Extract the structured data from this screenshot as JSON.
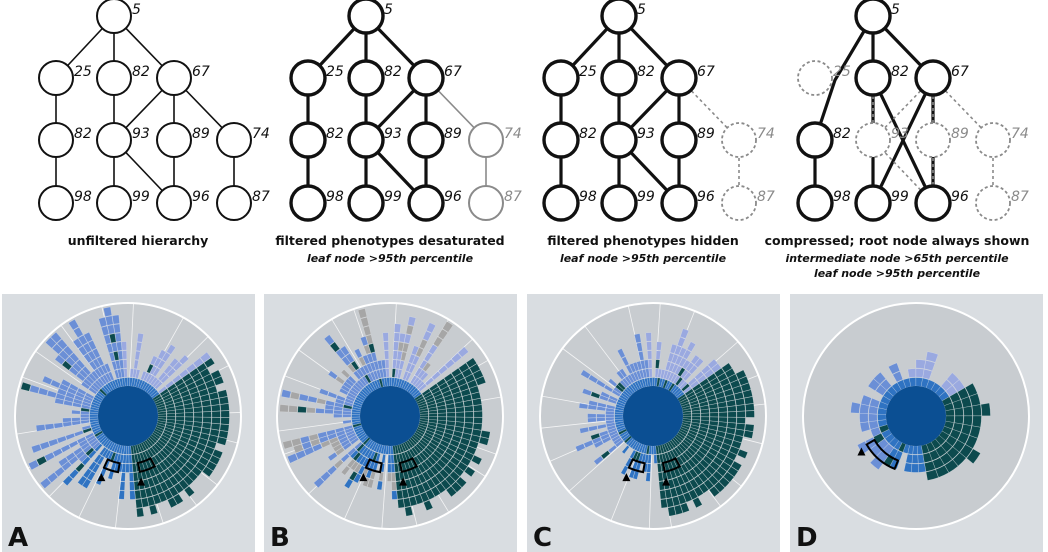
{
  "colors": {
    "panel_bg": "#d9dde1",
    "disk_bg": "#c8ccd0",
    "inner_circle": "#0b4f93",
    "teal": "#0c4a4e",
    "blue_mid": "#2f73c2",
    "blue_light": "#6b8fd6",
    "blue_pale": "#9aa9e0",
    "gray": "#a6a6a6",
    "black": "#111111",
    "faded": "#8a8a8a"
  },
  "diagrams": [
    {
      "id": "unfiltered",
      "caption": "unfiltered hierarchy",
      "subcaptions": [],
      "nodes": [
        {
          "id": "root",
          "label": "5",
          "state": "normal"
        },
        {
          "id": "a",
          "label": "25",
          "state": "normal"
        },
        {
          "id": "b",
          "label": "82",
          "state": "normal"
        },
        {
          "id": "c",
          "label": "67",
          "state": "normal"
        },
        {
          "id": "a1",
          "label": "82",
          "state": "normal"
        },
        {
          "id": "d",
          "label": "93",
          "state": "normal"
        },
        {
          "id": "e",
          "label": "89",
          "state": "normal"
        },
        {
          "id": "f",
          "label": "74",
          "state": "normal"
        },
        {
          "id": "a2",
          "label": "98",
          "state": "normal"
        },
        {
          "id": "g",
          "label": "99",
          "state": "normal"
        },
        {
          "id": "h",
          "label": "96",
          "state": "normal"
        },
        {
          "id": "i",
          "label": "87",
          "state": "normal"
        }
      ],
      "edges": [
        [
          "root",
          "a",
          "normal"
        ],
        [
          "root",
          "b",
          "normal"
        ],
        [
          "root",
          "c",
          "normal"
        ],
        [
          "a",
          "a1",
          "normal"
        ],
        [
          "a1",
          "a2",
          "normal"
        ],
        [
          "b",
          "d",
          "normal"
        ],
        [
          "c",
          "d",
          "normal"
        ],
        [
          "c",
          "e",
          "normal"
        ],
        [
          "c",
          "f",
          "normal"
        ],
        [
          "d",
          "g",
          "normal"
        ],
        [
          "d",
          "h",
          "normal"
        ],
        [
          "e",
          "h",
          "normal"
        ],
        [
          "f",
          "i",
          "normal"
        ]
      ]
    },
    {
      "id": "desaturated",
      "caption": "filtered phenotypes desaturated",
      "subcaptions": [
        "leaf node >95th percentile"
      ],
      "nodes": [
        {
          "id": "root",
          "label": "5",
          "state": "bold"
        },
        {
          "id": "a",
          "label": "25",
          "state": "bold"
        },
        {
          "id": "b",
          "label": "82",
          "state": "bold"
        },
        {
          "id": "c",
          "label": "67",
          "state": "bold"
        },
        {
          "id": "a1",
          "label": "82",
          "state": "bold"
        },
        {
          "id": "d",
          "label": "93",
          "state": "bold"
        },
        {
          "id": "e",
          "label": "89",
          "state": "bold"
        },
        {
          "id": "f",
          "label": "74",
          "state": "gray"
        },
        {
          "id": "a2",
          "label": "98",
          "state": "bold"
        },
        {
          "id": "g",
          "label": "99",
          "state": "bold"
        },
        {
          "id": "h",
          "label": "96",
          "state": "bold"
        },
        {
          "id": "i",
          "label": "87",
          "state": "gray"
        }
      ],
      "edges": [
        [
          "root",
          "a",
          "bold"
        ],
        [
          "root",
          "b",
          "bold"
        ],
        [
          "root",
          "c",
          "bold"
        ],
        [
          "a",
          "a1",
          "bold"
        ],
        [
          "a1",
          "a2",
          "bold"
        ],
        [
          "b",
          "d",
          "bold"
        ],
        [
          "c",
          "d",
          "bold"
        ],
        [
          "c",
          "e",
          "bold"
        ],
        [
          "c",
          "f",
          "gray"
        ],
        [
          "d",
          "g",
          "bold"
        ],
        [
          "d",
          "h",
          "bold"
        ],
        [
          "e",
          "h",
          "bold"
        ],
        [
          "f",
          "i",
          "gray"
        ]
      ]
    },
    {
      "id": "hidden",
      "caption": "filtered phenotypes hidden",
      "subcaptions": [
        "leaf node >95th percentile"
      ],
      "nodes": [
        {
          "id": "root",
          "label": "5",
          "state": "bold"
        },
        {
          "id": "a",
          "label": "25",
          "state": "bold"
        },
        {
          "id": "b",
          "label": "82",
          "state": "bold"
        },
        {
          "id": "c",
          "label": "67",
          "state": "bold"
        },
        {
          "id": "a1",
          "label": "82",
          "state": "bold"
        },
        {
          "id": "d",
          "label": "93",
          "state": "bold"
        },
        {
          "id": "e",
          "label": "89",
          "state": "bold"
        },
        {
          "id": "f",
          "label": "74",
          "state": "dashed"
        },
        {
          "id": "a2",
          "label": "98",
          "state": "bold"
        },
        {
          "id": "g",
          "label": "99",
          "state": "bold"
        },
        {
          "id": "h",
          "label": "96",
          "state": "bold"
        },
        {
          "id": "i",
          "label": "87",
          "state": "dashed"
        }
      ],
      "edges": [
        [
          "root",
          "a",
          "bold"
        ],
        [
          "root",
          "b",
          "bold"
        ],
        [
          "root",
          "c",
          "bold"
        ],
        [
          "a",
          "a1",
          "bold"
        ],
        [
          "a1",
          "a2",
          "bold"
        ],
        [
          "b",
          "d",
          "bold"
        ],
        [
          "c",
          "d",
          "bold"
        ],
        [
          "c",
          "e",
          "bold"
        ],
        [
          "c",
          "f",
          "dashed"
        ],
        [
          "d",
          "g",
          "bold"
        ],
        [
          "d",
          "h",
          "bold"
        ],
        [
          "e",
          "h",
          "bold"
        ],
        [
          "f",
          "i",
          "dashed"
        ]
      ]
    },
    {
      "id": "compressed",
      "caption": "compressed; root node always shown",
      "subcaptions": [
        "intermediate node >65th percentile",
        "leaf node >95th percentile"
      ],
      "nodes": [
        {
          "id": "root",
          "label": "5",
          "state": "bold"
        },
        {
          "id": "a",
          "label": "25",
          "state": "dashed"
        },
        {
          "id": "b",
          "label": "82",
          "state": "bold"
        },
        {
          "id": "c",
          "label": "67",
          "state": "bold"
        },
        {
          "id": "a1",
          "label": "82",
          "state": "bold"
        },
        {
          "id": "d",
          "label": "93",
          "state": "dashed"
        },
        {
          "id": "e",
          "label": "89",
          "state": "dashed"
        },
        {
          "id": "f",
          "label": "74",
          "state": "dashed"
        },
        {
          "id": "a2",
          "label": "98",
          "state": "bold"
        },
        {
          "id": "g",
          "label": "99",
          "state": "bold"
        },
        {
          "id": "h",
          "label": "96",
          "state": "bold"
        },
        {
          "id": "i",
          "label": "87",
          "state": "dashed"
        }
      ],
      "edges": [
        [
          "root",
          "b",
          "bold"
        ],
        [
          "root",
          "c",
          "bold"
        ],
        [
          "root",
          "a1",
          "bold"
        ],
        [
          "a1",
          "a2",
          "bold"
        ],
        [
          "b",
          "g",
          "bold"
        ],
        [
          "b",
          "h",
          "bold"
        ],
        [
          "c",
          "g",
          "bold"
        ],
        [
          "c",
          "h",
          "bold"
        ],
        [
          "b",
          "d",
          "dashed"
        ],
        [
          "c",
          "d",
          "dashed"
        ],
        [
          "c",
          "e",
          "dashed"
        ],
        [
          "c",
          "f",
          "dashed"
        ],
        [
          "d",
          "h",
          "dashed"
        ],
        [
          "e",
          "h",
          "dashed"
        ],
        [
          "f",
          "i",
          "dashed"
        ]
      ]
    }
  ],
  "sunburst_panels": [
    {
      "label": "A",
      "variant": "full",
      "callout_count": 2
    },
    {
      "label": "B",
      "variant": "desaturated",
      "callout_count": 2
    },
    {
      "label": "C",
      "variant": "hidden",
      "callout_count": 2
    },
    {
      "label": "D",
      "variant": "compressed",
      "callout_count": 1
    }
  ]
}
